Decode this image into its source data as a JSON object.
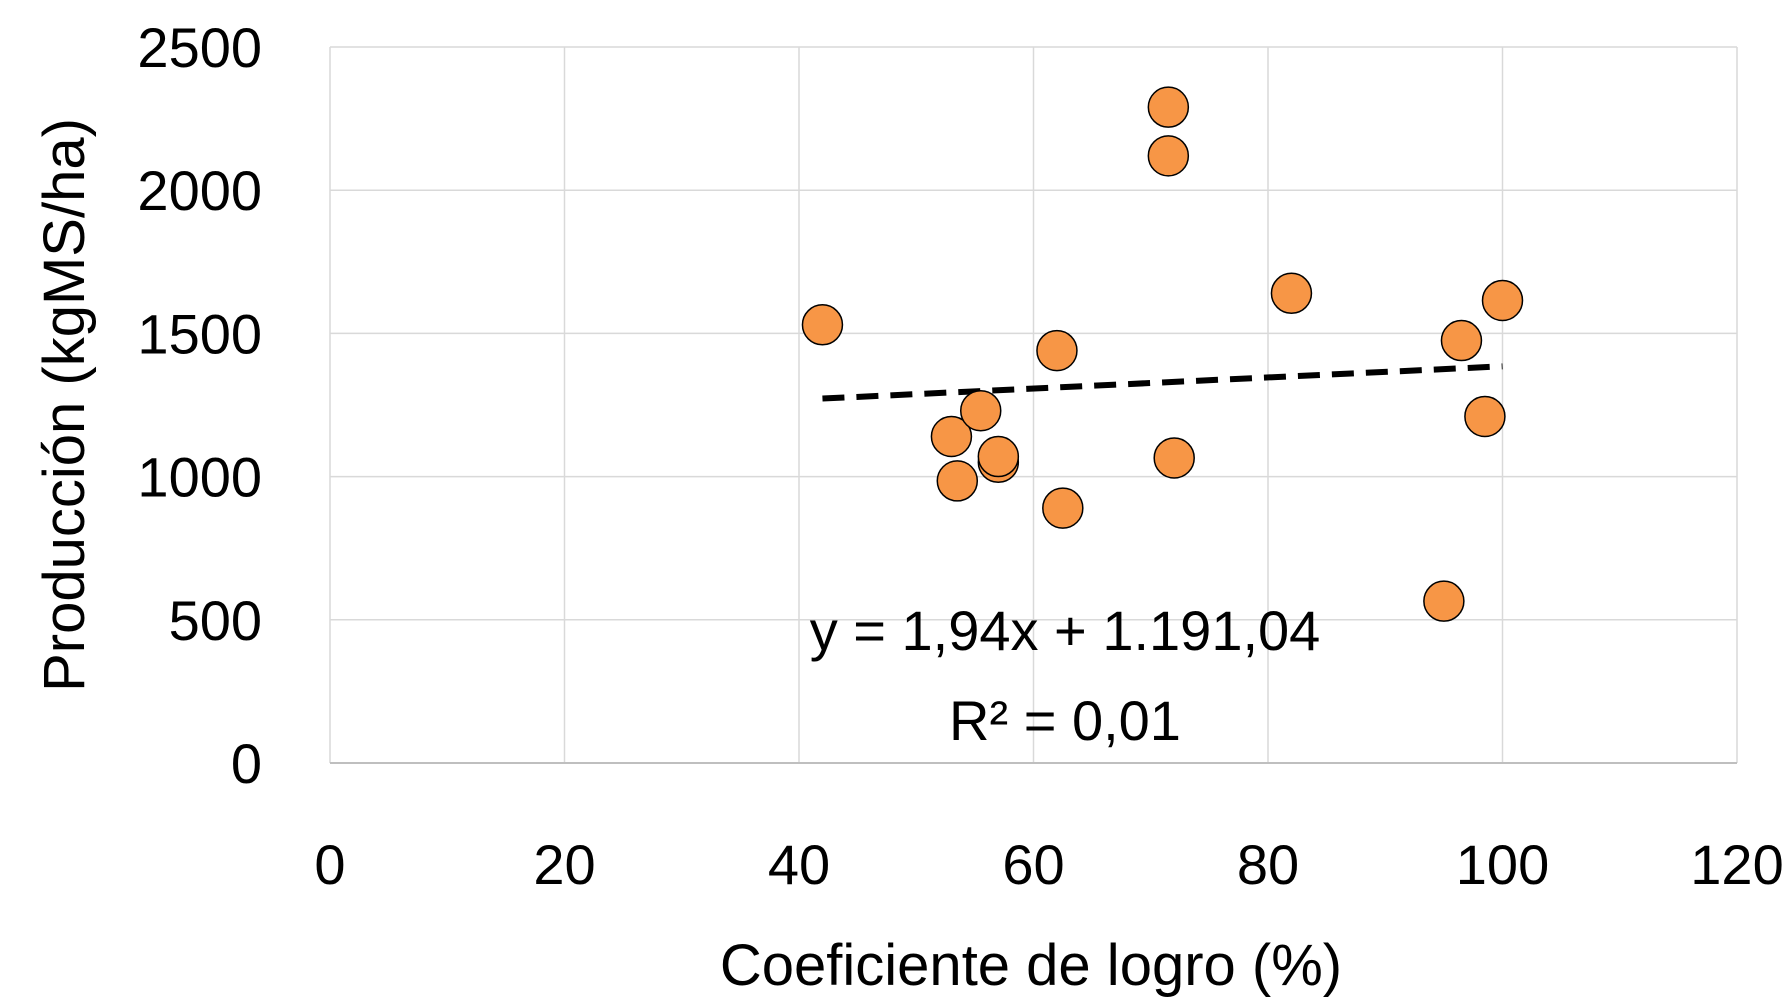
{
  "chart_data": {
    "type": "scatter",
    "title": "",
    "xlabel": "Coeficiente de logro (%)",
    "ylabel": "Producción (kgMS/ha)",
    "xlim": [
      0,
      120
    ],
    "ylim": [
      0,
      2500
    ],
    "x_ticks": [
      0,
      20,
      40,
      60,
      80,
      100,
      120
    ],
    "y_ticks": [
      0,
      500,
      1000,
      1500,
      2000,
      2500
    ],
    "grid": true,
    "legend": "none",
    "series": [
      {
        "marker_color": "#F79646",
        "marker_edge_color": "#000000",
        "points": [
          {
            "x": 42,
            "y": 1530
          },
          {
            "x": 53,
            "y": 1140
          },
          {
            "x": 53.5,
            "y": 985
          },
          {
            "x": 55.5,
            "y": 1230
          },
          {
            "x": 57,
            "y": 1050
          },
          {
            "x": 57,
            "y": 1070
          },
          {
            "x": 62,
            "y": 1440
          },
          {
            "x": 62.5,
            "y": 890
          },
          {
            "x": 71.5,
            "y": 2290
          },
          {
            "x": 71.5,
            "y": 2120
          },
          {
            "x": 72,
            "y": 1065
          },
          {
            "x": 82,
            "y": 1640
          },
          {
            "x": 95,
            "y": 565
          },
          {
            "x": 96.5,
            "y": 1475
          },
          {
            "x": 98.5,
            "y": 1210
          },
          {
            "x": 100,
            "y": 1615
          }
        ]
      }
    ],
    "trendline": {
      "style": "dashed",
      "color": "#000000",
      "slope": 1.94,
      "intercept": 1191.04,
      "x_start": 42,
      "x_end": 100,
      "equation_text": "y = 1,94x + 1.191,04",
      "r2_text": "R² = 0,01"
    }
  }
}
